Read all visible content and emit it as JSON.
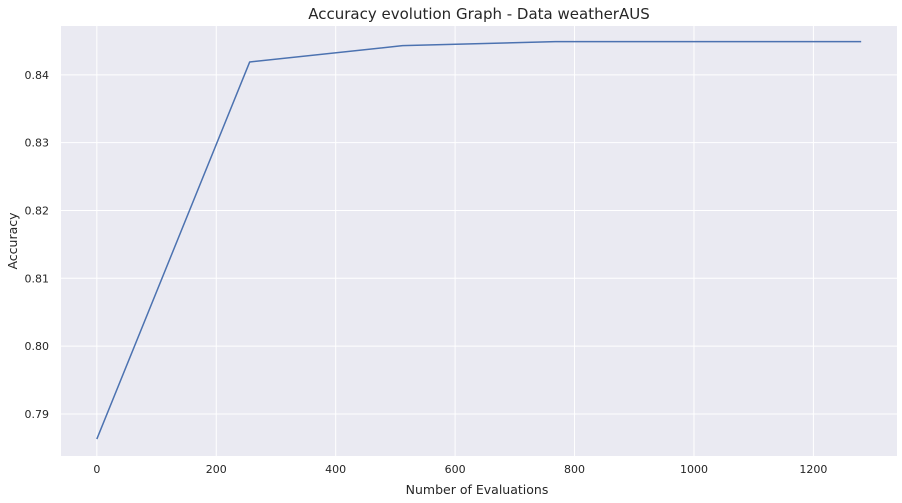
{
  "colors": {
    "plot_background": "#eaeaf2",
    "grid": "#ffffff",
    "line": "#4c72b0",
    "text": "#262626"
  },
  "chart_data": {
    "type": "line",
    "title": "Accuracy evolution Graph - Data weatherAUS",
    "xlabel": "Number of Evaluations",
    "ylabel": "Accuracy",
    "xlim": [
      -60,
      1340
    ],
    "ylim": [
      0.7838,
      0.8472
    ],
    "xticks": [
      0,
      200,
      400,
      600,
      800,
      1000,
      1200
    ],
    "yticks": [
      0.79,
      0.8,
      0.81,
      0.82,
      0.83,
      0.84
    ],
    "xtick_labels": [
      "0",
      "200",
      "400",
      "600",
      "800",
      "1000",
      "1200"
    ],
    "ytick_labels": [
      "0.79",
      "0.80",
      "0.81",
      "0.82",
      "0.83",
      "0.84"
    ],
    "grid": true,
    "series": [
      {
        "x": [
          0,
          256,
          512,
          768,
          1024,
          1280
        ],
        "y": [
          0.7863,
          0.8419,
          0.8443,
          0.8449,
          0.8449,
          0.8449
        ]
      }
    ]
  }
}
